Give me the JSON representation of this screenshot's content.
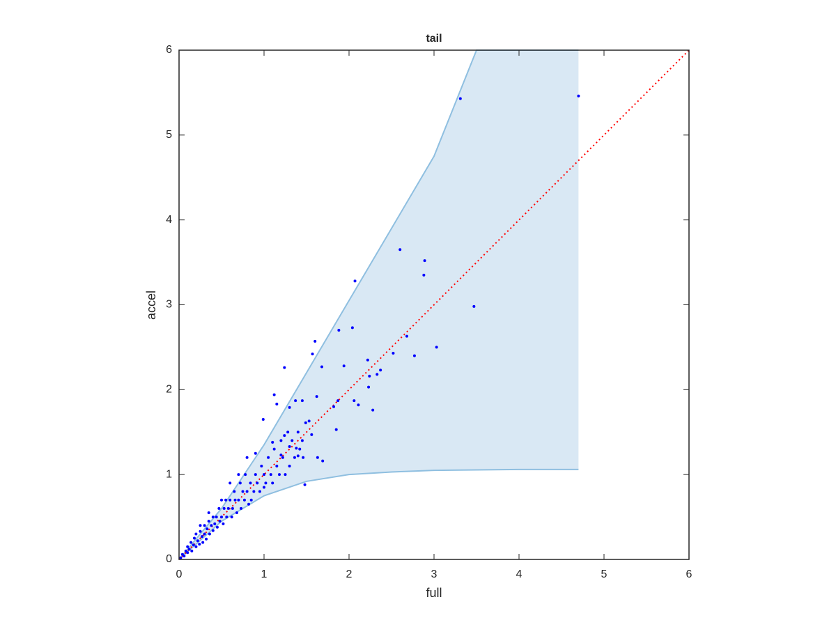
{
  "chart_data": {
    "type": "scatter",
    "title": "tail",
    "xlabel": "full",
    "ylabel": "accel",
    "xlim": [
      0,
      6
    ],
    "ylim": [
      0,
      6
    ],
    "xticks": [
      0,
      1,
      2,
      3,
      4,
      5,
      6
    ],
    "yticks": [
      0,
      1,
      2,
      3,
      4,
      5,
      6
    ],
    "grid": false,
    "band": {
      "color": "#d9e8f4",
      "edge_color": "#8fbfe0",
      "x": [
        0,
        0.5,
        1,
        1.5,
        2,
        2.5,
        3,
        3.5,
        4,
        4.7
      ],
      "upper": [
        0,
        0.6,
        1.35,
        2.2,
        3.05,
        3.9,
        4.75,
        6,
        6,
        6
      ],
      "lower": [
        0,
        0.45,
        0.75,
        0.92,
        1.0,
        1.03,
        1.05,
        1.055,
        1.06,
        1.06
      ]
    },
    "reference_line": {
      "color": "#ff0000",
      "x": [
        0,
        6
      ],
      "y": [
        0,
        6
      ]
    },
    "series": [
      {
        "color": "#0000ff",
        "x": [
          3.31,
          4.7,
          2.6,
          2.89,
          2.88,
          2.07,
          3.47,
          2.04,
          1.88,
          2.68,
          3.03,
          2.77,
          2.52,
          1.6,
          1.57,
          1.24,
          2.22,
          1.68,
          1.94,
          2.37,
          2.33,
          2.24,
          2.23,
          2.28,
          2.06,
          2.11,
          1.87,
          1.82,
          1.85,
          1.62,
          1.12,
          1.15,
          1.37,
          1.45,
          1.3,
          0.99,
          1.49,
          1.53,
          1.56,
          1.69,
          1.63,
          1.48,
          1.24,
          1.1,
          1.3,
          1.2,
          1.38,
          1.4,
          0.02,
          0.04,
          0.06,
          0.08,
          0.1,
          0.1,
          0.12,
          0.14,
          0.15,
          0.17,
          0.18,
          0.2,
          0.2,
          0.22,
          0.24,
          0.25,
          0.27,
          0.28,
          0.3,
          0.3,
          0.32,
          0.33,
          0.35,
          0.36,
          0.38,
          0.4,
          0.4,
          0.42,
          0.44,
          0.45,
          0.47,
          0.48,
          0.5,
          0.52,
          0.53,
          0.55,
          0.56,
          0.58,
          0.6,
          0.62,
          0.63,
          0.65,
          0.66,
          0.68,
          0.7,
          0.72,
          0.73,
          0.75,
          0.77,
          0.78,
          0.8,
          0.82,
          0.84,
          0.85,
          0.88,
          0.9,
          0.92,
          0.95,
          0.97,
          1.0,
          1.02,
          1.05,
          1.08,
          1.1,
          1.12,
          1.15,
          1.18,
          1.2,
          1.22,
          1.25,
          1.28,
          1.3,
          1.33,
          1.36,
          1.4,
          1.42,
          1.45,
          1.46,
          0.6,
          0.5,
          0.7,
          0.8,
          0.9,
          1.0,
          0.35,
          0.25
        ],
        "values": [
          5.43,
          5.46,
          3.65,
          3.52,
          3.35,
          3.28,
          2.98,
          2.73,
          2.7,
          2.63,
          2.5,
          2.4,
          2.43,
          2.57,
          2.42,
          2.26,
          2.35,
          2.27,
          2.28,
          2.23,
          2.18,
          2.16,
          2.03,
          1.76,
          1.87,
          1.82,
          1.87,
          1.8,
          1.53,
          1.92,
          1.94,
          1.83,
          1.87,
          1.87,
          1.79,
          1.65,
          1.61,
          1.63,
          1.47,
          1.16,
          1.2,
          0.88,
          1.46,
          1.38,
          1.33,
          1.23,
          1.31,
          1.22,
          0.02,
          0.06,
          0.04,
          0.1,
          0.08,
          0.15,
          0.12,
          0.2,
          0.1,
          0.17,
          0.25,
          0.15,
          0.3,
          0.22,
          0.18,
          0.33,
          0.27,
          0.2,
          0.4,
          0.3,
          0.24,
          0.36,
          0.45,
          0.3,
          0.4,
          0.5,
          0.34,
          0.42,
          0.5,
          0.38,
          0.6,
          0.45,
          0.5,
          0.42,
          0.6,
          0.7,
          0.5,
          0.6,
          0.7,
          0.5,
          0.6,
          0.8,
          0.7,
          0.55,
          0.7,
          0.9,
          0.6,
          0.8,
          0.7,
          1.0,
          0.8,
          0.65,
          0.9,
          0.7,
          0.8,
          1.0,
          0.9,
          0.8,
          1.1,
          1.0,
          0.9,
          1.2,
          1.0,
          0.9,
          1.3,
          1.1,
          1.0,
          1.4,
          1.2,
          1.0,
          1.5,
          1.1,
          1.4,
          1.2,
          1.5,
          1.3,
          1.4,
          1.2,
          0.9,
          0.7,
          1.0,
          1.2,
          1.25,
          0.85,
          0.55,
          0.4
        ]
      }
    ]
  }
}
